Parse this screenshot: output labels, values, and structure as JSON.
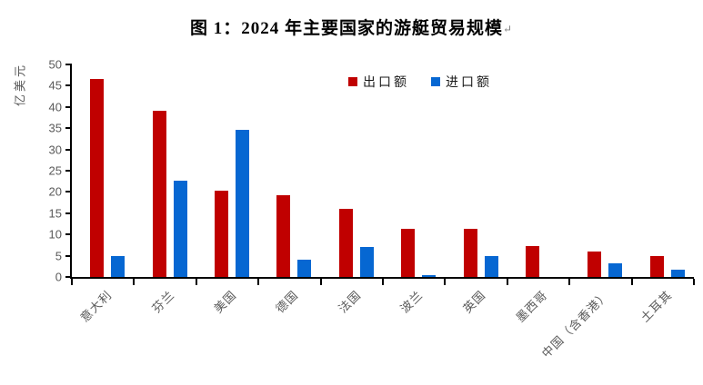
{
  "title": "图 1：2024 年主要国家的游艇贸易规模",
  "title_paragraph_mark": "↵",
  "colors": {
    "export_red": "#c00000",
    "import_blue": "#0667d2",
    "axis": "#000000",
    "tick_label_gray": "#595959"
  },
  "chart_data": {
    "type": "bar",
    "title": "图 1：2024 年主要国家的游艇贸易规模",
    "xlabel": "",
    "ylabel": "亿美元",
    "ylim": [
      0,
      50
    ],
    "yticks": [
      0,
      5,
      10,
      15,
      20,
      25,
      30,
      35,
      40,
      45,
      50
    ],
    "grid": false,
    "legend_position": "top-center",
    "categories": [
      "意大利",
      "芬兰",
      "美国",
      "德国",
      "法国",
      "波兰",
      "英国",
      "墨西哥",
      "中国（含香港）",
      "土耳其"
    ],
    "series": [
      {
        "name": "出口额",
        "color": "#c00000",
        "values": [
          46.5,
          39,
          20.2,
          19.3,
          16,
          11.3,
          11.3,
          7.3,
          6,
          5
        ]
      },
      {
        "name": "进口额",
        "color": "#0667d2",
        "values": [
          5,
          22.7,
          34.7,
          4,
          7,
          0.5,
          5,
          0,
          3.2,
          1.8
        ]
      }
    ]
  }
}
